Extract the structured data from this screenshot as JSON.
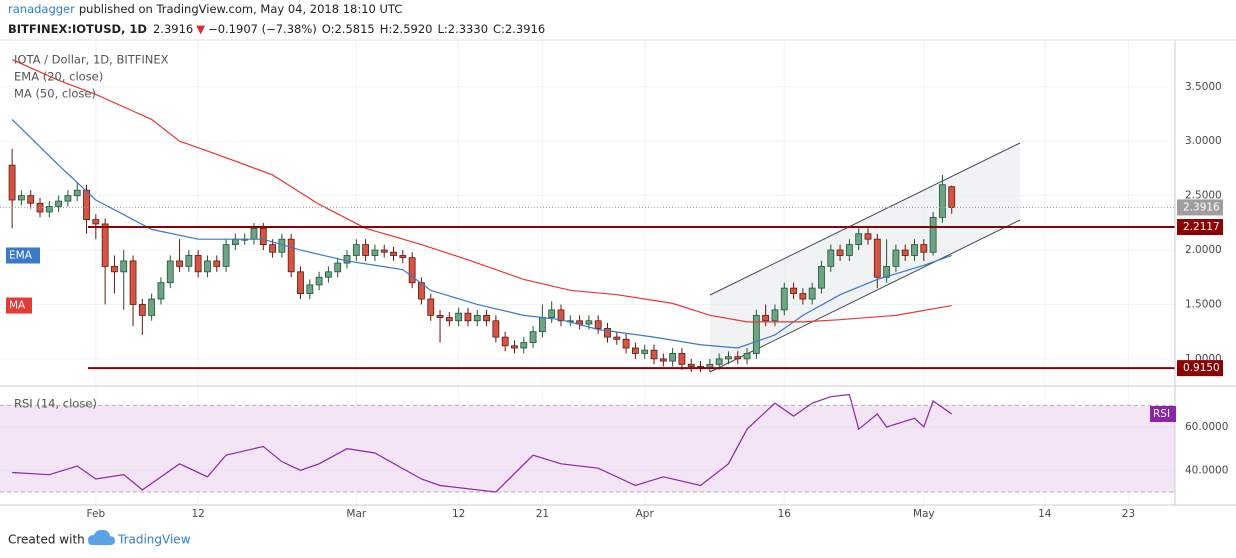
{
  "header": {
    "author": "ranadagger",
    "published": "published on TradingView.com, May 04, 2018 18:10 UTC",
    "symbol": "BITFINEX:IOTUSD, 1D",
    "price": "2.3916",
    "change": "−0.1907 (−7.38%)",
    "ohlc": [
      "O:2.5815",
      "H:2.5920",
      "L:2.3330",
      "C:2.3916"
    ]
  },
  "footer": {
    "created": "Created with",
    "brand": "TradingView"
  },
  "chart_data": [
    {
      "type": "candlestick",
      "title": "IOTA / Dollar, 1D, BITFINEX",
      "xlim": [
        -1.3,
        125
      ],
      "xticks": [
        {
          "value": 9,
          "label": "Feb"
        },
        {
          "value": 20,
          "label": "12"
        },
        {
          "value": 37,
          "label": "Mar"
        },
        {
          "value": 48,
          "label": "12"
        },
        {
          "value": 57,
          "label": "21"
        },
        {
          "value": 68,
          "label": "Apr"
        },
        {
          "value": 83,
          "label": "16"
        },
        {
          "value": 98,
          "label": "May"
        },
        {
          "value": 111,
          "label": "14"
        },
        {
          "value": 120,
          "label": "23"
        }
      ],
      "ylim": [
        0.76,
        3.93
      ],
      "yticks": [
        {
          "value": 1.0,
          "label": "1.0000"
        },
        {
          "value": 1.5,
          "label": "1.5000"
        },
        {
          "value": 2.0,
          "label": "2.0000"
        },
        {
          "value": 2.5,
          "label": "2.5000"
        },
        {
          "value": 3.0,
          "label": "3.0000"
        },
        {
          "value": 3.5,
          "label": "3.5000"
        }
      ],
      "grid": true,
      "up_color": "#6ba583",
      "down_color": "#d75442",
      "open": [
        2.78,
        2.46,
        2.5,
        2.43,
        2.35,
        2.4,
        2.45,
        2.5,
        2.55,
        2.28,
        2.24,
        1.85,
        1.8,
        1.9,
        1.5,
        1.4,
        1.55,
        1.7,
        1.9,
        1.85,
        1.95,
        1.8,
        1.9,
        1.85,
        2.05,
        2.1,
        2.1,
        2.2,
        2.05,
        1.98,
        2.1,
        1.8,
        1.6,
        1.68,
        1.75,
        1.8,
        1.88,
        1.95,
        2.05,
        1.95,
        2.0,
        1.98,
        1.95,
        1.93,
        1.7,
        1.55,
        1.4,
        1.38,
        1.35,
        1.42,
        1.35,
        1.4,
        1.35,
        1.2,
        1.12,
        1.1,
        1.15,
        1.25,
        1.38,
        1.45,
        1.35,
        1.35,
        1.32,
        1.35,
        1.28,
        1.2,
        1.18,
        1.1,
        1.05,
        1.08,
        1.0,
        0.98,
        1.05,
        0.95,
        0.93,
        0.92,
        0.95,
        1.0,
        1.02,
        1.0,
        1.05,
        1.4,
        1.35,
        1.45,
        1.65,
        1.6,
        1.55,
        1.65,
        1.85,
        2.0,
        1.95,
        2.05,
        2.15,
        2.1,
        1.75,
        1.85,
        2.0,
        1.95,
        2.05,
        1.98,
        2.3,
        2.5815
      ],
      "high": [
        2.93,
        2.55,
        2.55,
        2.48,
        2.45,
        2.5,
        2.55,
        2.62,
        2.6,
        2.33,
        2.29,
        1.95,
        2.0,
        1.95,
        1.55,
        1.6,
        1.75,
        1.95,
        2.1,
        2.0,
        2.0,
        1.95,
        1.95,
        2.1,
        2.15,
        2.15,
        2.25,
        2.25,
        2.1,
        2.15,
        2.15,
        1.85,
        1.73,
        1.8,
        1.85,
        1.93,
        2.0,
        2.1,
        2.1,
        2.05,
        2.05,
        2.03,
        2.0,
        1.98,
        1.75,
        1.6,
        1.45,
        1.43,
        1.47,
        1.47,
        1.45,
        1.45,
        1.4,
        1.25,
        1.17,
        1.2,
        1.3,
        1.5,
        1.53,
        1.5,
        1.4,
        1.4,
        1.4,
        1.4,
        1.33,
        1.25,
        1.23,
        1.15,
        1.13,
        1.13,
        1.05,
        1.1,
        1.1,
        1.0,
        0.98,
        1.0,
        1.05,
        1.07,
        1.07,
        1.1,
        1.45,
        1.5,
        1.5,
        1.7,
        1.7,
        1.65,
        1.7,
        1.9,
        2.05,
        2.05,
        2.1,
        2.2,
        2.2,
        2.15,
        2.1,
        2.05,
        2.05,
        2.1,
        2.1,
        2.35,
        2.69,
        2.592
      ],
      "low": [
        2.2,
        2.41,
        2.38,
        2.3,
        2.3,
        2.35,
        2.4,
        2.45,
        2.15,
        2.1,
        1.5,
        1.6,
        1.45,
        1.3,
        1.22,
        1.35,
        1.5,
        1.65,
        1.8,
        1.8,
        1.75,
        1.75,
        1.8,
        1.8,
        2.0,
        2.05,
        2.05,
        2.0,
        1.93,
        1.93,
        1.75,
        1.55,
        1.55,
        1.63,
        1.7,
        1.75,
        1.83,
        1.9,
        1.9,
        1.9,
        1.93,
        1.9,
        1.88,
        1.65,
        1.5,
        1.35,
        1.15,
        1.3,
        1.3,
        1.3,
        1.3,
        1.3,
        1.15,
        1.07,
        1.05,
        1.05,
        1.1,
        1.2,
        1.33,
        1.3,
        1.3,
        1.27,
        1.27,
        1.23,
        1.15,
        1.13,
        1.05,
        1.0,
        1.0,
        0.95,
        0.93,
        0.93,
        0.9,
        0.88,
        0.88,
        0.88,
        0.9,
        0.95,
        0.95,
        0.95,
        1.0,
        1.3,
        1.3,
        1.4,
        1.55,
        1.5,
        1.5,
        1.6,
        1.8,
        1.9,
        1.9,
        2.0,
        2.05,
        1.65,
        1.7,
        1.8,
        1.9,
        1.9,
        1.9,
        1.95,
        2.25,
        2.333
      ],
      "close": [
        2.46,
        2.5,
        2.43,
        2.35,
        2.4,
        2.45,
        2.5,
        2.55,
        2.28,
        2.24,
        1.85,
        1.8,
        1.9,
        1.5,
        1.4,
        1.55,
        1.7,
        1.9,
        1.85,
        1.95,
        1.8,
        1.9,
        1.85,
        2.05,
        2.1,
        2.1,
        2.2,
        2.05,
        1.98,
        2.1,
        1.8,
        1.6,
        1.68,
        1.75,
        1.8,
        1.88,
        1.95,
        2.05,
        1.95,
        2.0,
        1.98,
        1.95,
        1.93,
        1.7,
        1.55,
        1.4,
        1.38,
        1.35,
        1.42,
        1.35,
        1.4,
        1.35,
        1.2,
        1.12,
        1.1,
        1.15,
        1.25,
        1.38,
        1.45,
        1.35,
        1.35,
        1.32,
        1.35,
        1.28,
        1.2,
        1.18,
        1.1,
        1.05,
        1.08,
        1.0,
        0.98,
        1.05,
        0.95,
        0.93,
        0.92,
        0.95,
        1.0,
        1.02,
        1.0,
        1.05,
        1.4,
        1.35,
        1.45,
        1.65,
        1.6,
        1.55,
        1.65,
        1.85,
        2.0,
        1.95,
        2.05,
        2.15,
        2.1,
        1.75,
        1.85,
        2.0,
        1.95,
        2.05,
        1.98,
        2.3,
        2.6,
        2.3916
      ],
      "overlays": [
        {
          "name": "EMA (20, close)",
          "tag": "EMA",
          "color": "#3a78c9",
          "x": [
            0,
            5,
            9,
            15,
            20,
            27,
            31,
            36,
            42,
            45,
            50,
            55,
            59,
            63,
            69,
            74,
            78,
            82,
            85,
            89,
            93,
            98,
            101
          ],
          "values": [
            3.2,
            2.78,
            2.46,
            2.19,
            2.1,
            2.1,
            2.0,
            1.9,
            1.82,
            1.63,
            1.5,
            1.4,
            1.36,
            1.27,
            1.2,
            1.13,
            1.1,
            1.22,
            1.4,
            1.59,
            1.73,
            1.86,
            1.95
          ]
        },
        {
          "name": "MA (50, close)",
          "tag": "MA",
          "color": "#e53935",
          "x": [
            0,
            5,
            9,
            15,
            18,
            22,
            28,
            33,
            38,
            44,
            49,
            55,
            60,
            65,
            71,
            75,
            79,
            85,
            89,
            95,
            101
          ],
          "values": [
            3.75,
            3.56,
            3.43,
            3.2,
            3.0,
            2.88,
            2.69,
            2.42,
            2.2,
            2.05,
            1.91,
            1.73,
            1.63,
            1.59,
            1.51,
            1.4,
            1.34,
            1.34,
            1.36,
            1.4,
            1.49
          ]
        }
      ],
      "levels": {
        "values": [
          2.2117,
          0.915
        ],
        "value_labels": [
          "2.2117",
          "0.9150"
        ],
        "color": "#8b0000"
      },
      "last_color": "#9e9e9e"
    },
    {
      "type": "line",
      "title": "RSI (14, close)",
      "tag": "RSI",
      "color": "#8e24aa",
      "band_color": "#f3e5f5",
      "bands": [
        30,
        70
      ],
      "xlim": [
        -1.3,
        125
      ],
      "ylim": [
        24,
        78
      ],
      "yticks": [
        {
          "value": 40,
          "label": "40.0000"
        },
        {
          "value": 60,
          "label": "60.0000"
        }
      ],
      "x": [
        0,
        4,
        7,
        9,
        12,
        14,
        16,
        18,
        21,
        23,
        27,
        29,
        31,
        33,
        36,
        39,
        44,
        46,
        50,
        52,
        56,
        59,
        63,
        67,
        70,
        74,
        77,
        79,
        82,
        84,
        86,
        88,
        90,
        91,
        93,
        94,
        97,
        98,
        99,
        101
      ],
      "values": [
        39,
        38,
        42,
        36,
        38,
        31,
        37,
        43,
        37,
        47,
        51,
        44,
        40,
        43,
        50,
        48,
        36,
        33,
        31,
        30,
        47,
        43,
        41,
        33,
        37,
        33,
        43,
        59,
        71,
        65,
        71,
        74,
        75,
        59,
        66,
        60,
        64,
        60,
        72,
        66
      ]
    }
  ]
}
